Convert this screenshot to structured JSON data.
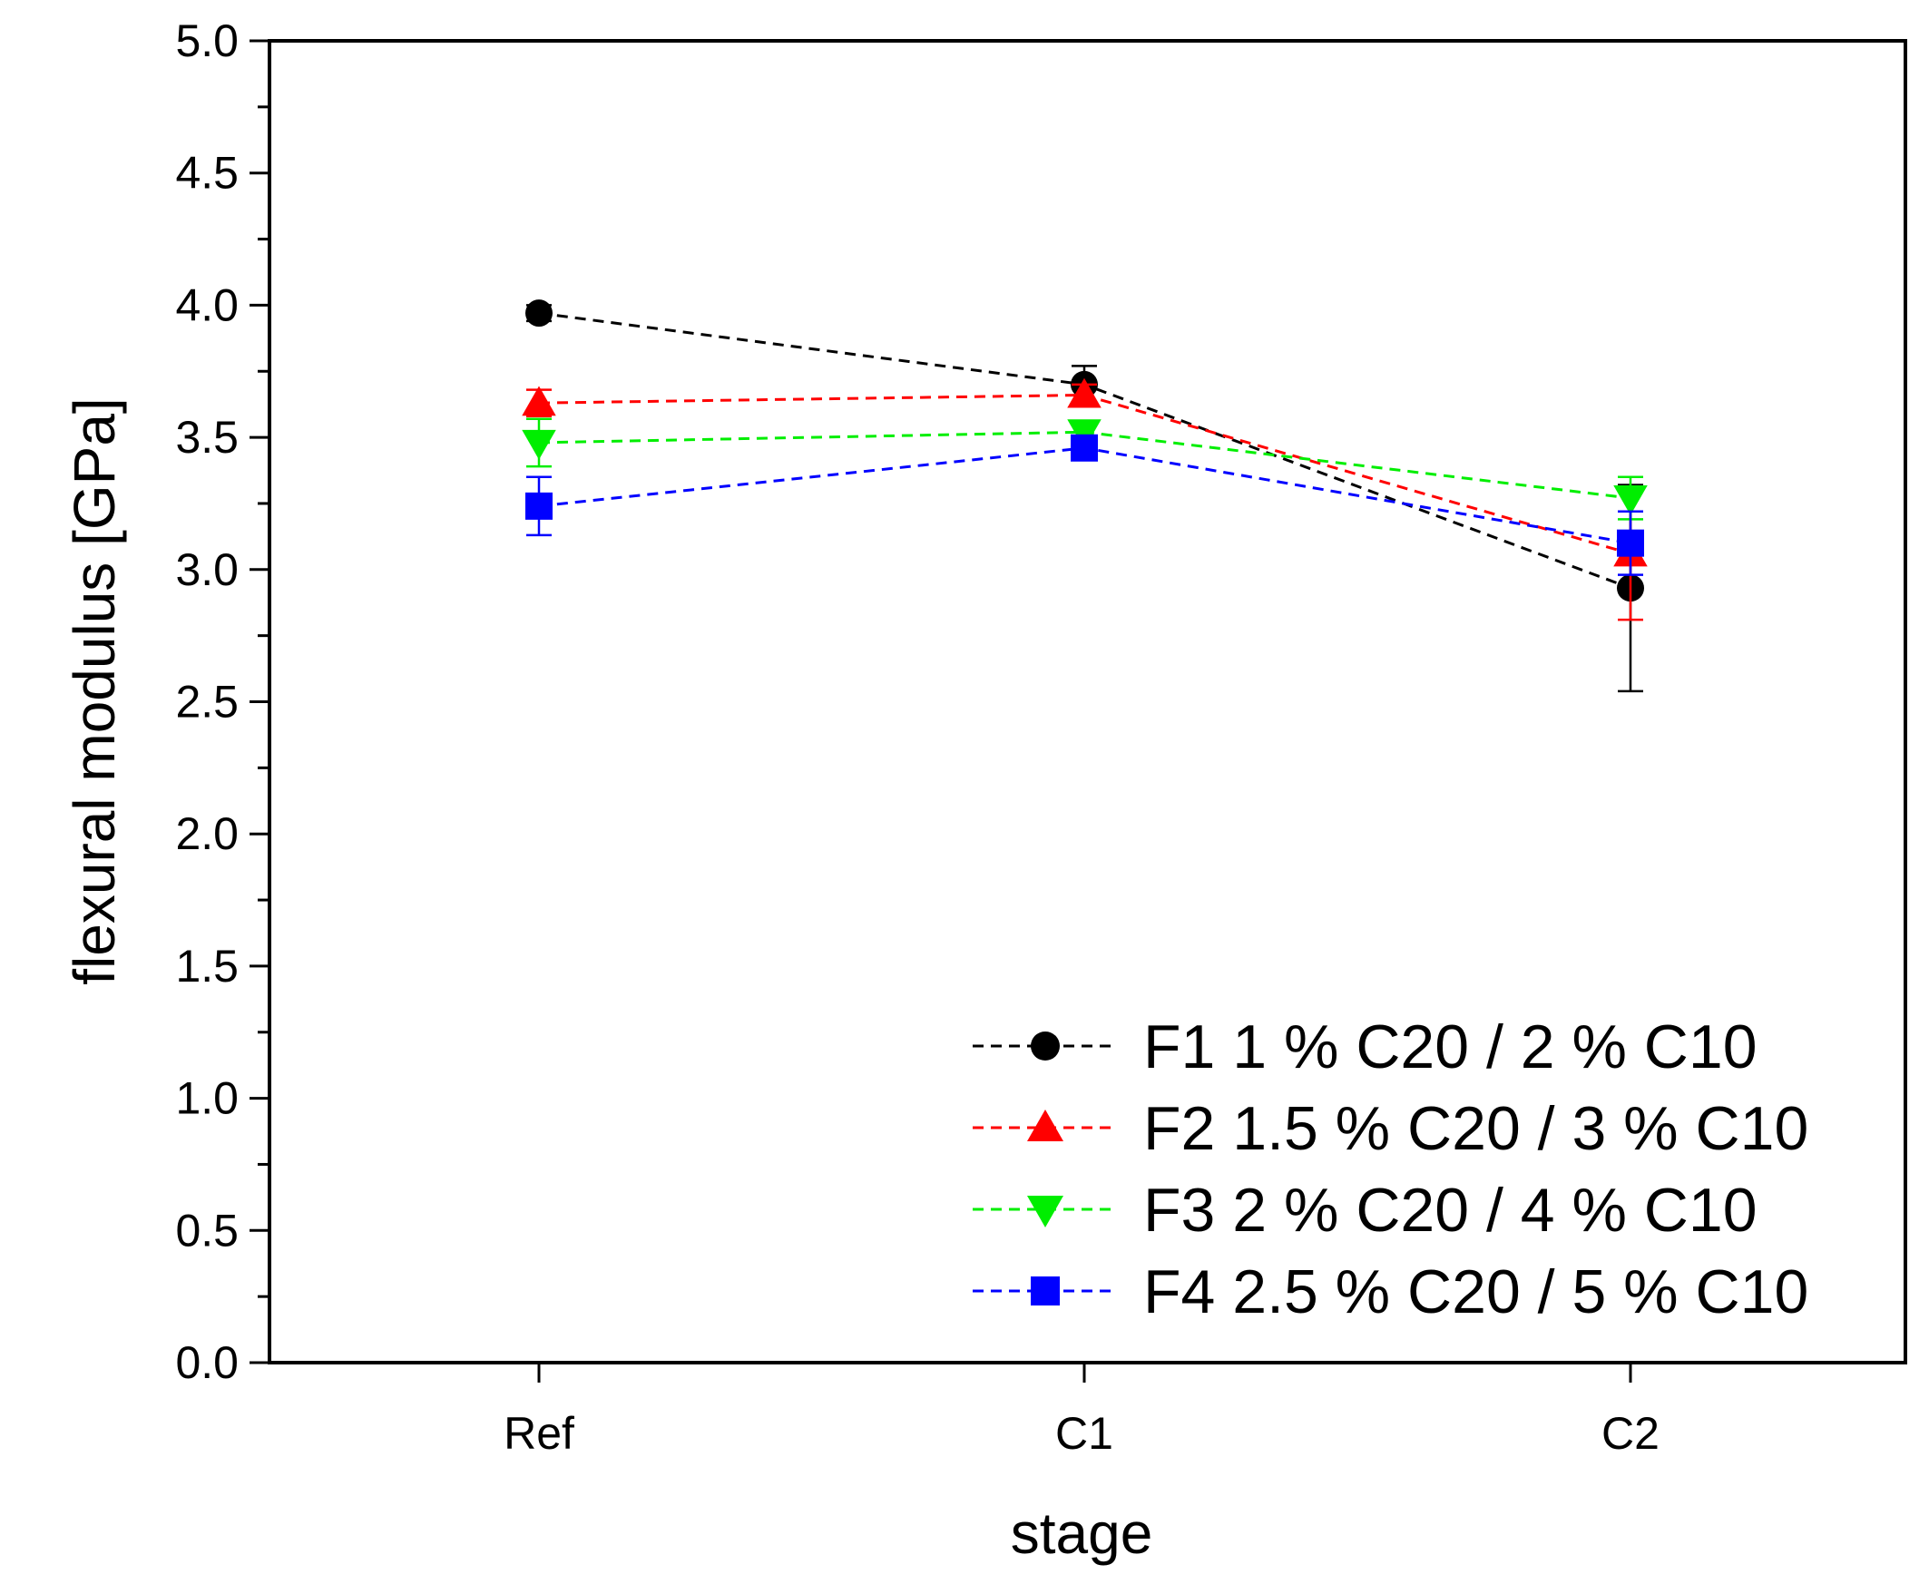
{
  "chart_data": {
    "type": "line",
    "xlabel": "stage",
    "ylabel": "flexural modulus [GPa]",
    "categories": [
      "Ref",
      "C1",
      "C2"
    ],
    "ylim": [
      0.0,
      5.0
    ],
    "yticks": [
      "0.0",
      "0.5",
      "1.0",
      "1.5",
      "2.0",
      "2.5",
      "3.0",
      "3.5",
      "4.0",
      "4.5",
      "5.0"
    ],
    "legend_position": "bottom-right",
    "grid": false,
    "line_style": "dashed",
    "series": [
      {
        "name": "F1 1 % C20 / 2 % C10",
        "color": "#000000",
        "marker": "circle",
        "values": [
          3.97,
          3.7,
          2.93
        ],
        "errors": [
          0.03,
          0.07,
          0.39
        ]
      },
      {
        "name": "F2 1.5 % C20 / 3 % C10",
        "color": "#ff0000",
        "marker": "triangle-up",
        "values": [
          3.63,
          3.66,
          3.06
        ],
        "errors": [
          0.05,
          0.04,
          0.25
        ]
      },
      {
        "name": "F3 2 % C20 / 4 % C10",
        "color": "#00ee00",
        "marker": "triangle-down",
        "values": [
          3.48,
          3.52,
          3.27
        ],
        "errors": [
          0.09,
          0.03,
          0.08
        ]
      },
      {
        "name": "F4 2.5 % C20 / 5 % C10",
        "color": "#0000ff",
        "marker": "square",
        "values": [
          3.24,
          3.46,
          3.1
        ],
        "errors": [
          0.11,
          0.02,
          0.12
        ]
      }
    ]
  }
}
